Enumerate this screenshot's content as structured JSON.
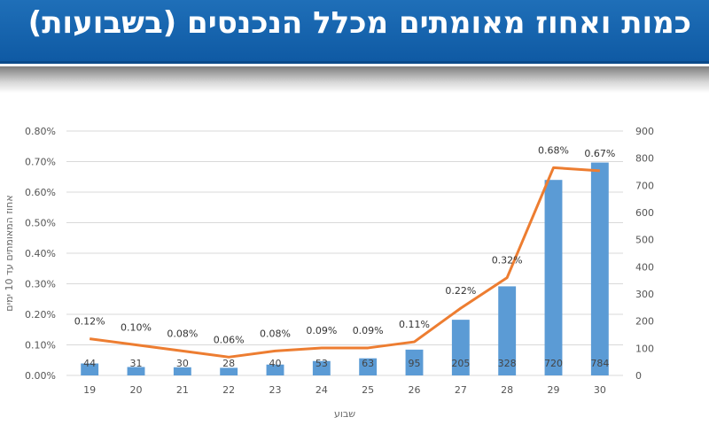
{
  "header": {
    "title": "כמות ואחוז מאומתים מכלל הנכנסים (בשבועות)"
  },
  "colors": {
    "header_bg": "#1565b0",
    "bar": "#5b9bd5",
    "line": "#ed7d31",
    "grid": "#d9d9d9"
  },
  "chart_data": {
    "type": "bar",
    "categories": [
      "19",
      "20",
      "21",
      "22",
      "23",
      "24",
      "25",
      "26",
      "27",
      "28",
      "29",
      "30"
    ],
    "xlabel": "שבוע",
    "ylabel": "אחוז המאומתים עד 10 ימים",
    "ylim": [
      0,
      0.8
    ],
    "y2lim": [
      0,
      900
    ],
    "yticks": [
      "0.00%",
      "0.10%",
      "0.20%",
      "0.30%",
      "0.40%",
      "0.50%",
      "0.60%",
      "0.70%",
      "0.80%"
    ],
    "y2ticks": [
      "0",
      "100",
      "200",
      "300",
      "400",
      "500",
      "600",
      "700",
      "800",
      "900"
    ],
    "grid": true,
    "series": [
      {
        "type": "bar",
        "axis": "right",
        "values": [
          44,
          31,
          30,
          28,
          40,
          53,
          63,
          95,
          205,
          328,
          720,
          784
        ],
        "labels": [
          "44",
          "31",
          "30",
          "28",
          "40",
          "53",
          "63",
          "95",
          "205",
          "328",
          "720",
          "784"
        ]
      },
      {
        "type": "line",
        "axis": "left",
        "values": [
          0.12,
          0.1,
          0.08,
          0.06,
          0.08,
          0.09,
          0.09,
          0.11,
          0.22,
          0.32,
          0.68,
          0.67
        ],
        "labels": [
          "0.12%",
          "0.10%",
          "0.08%",
          "0.06%",
          "0.08%",
          "0.09%",
          "0.09%",
          "0.11%",
          "0.22%",
          "0.32%",
          "0.68%",
          "0.67%"
        ]
      }
    ]
  }
}
